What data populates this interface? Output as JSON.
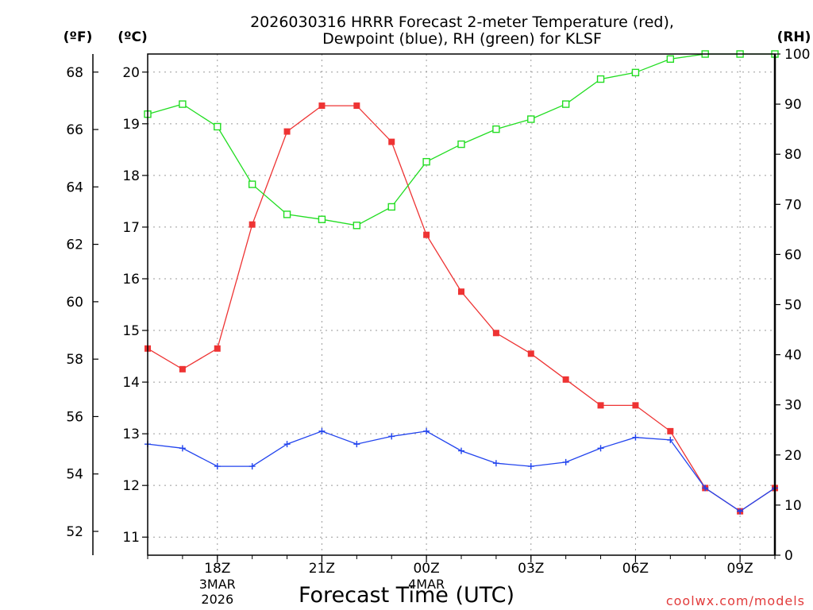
{
  "chart_data": {
    "type": "line",
    "title": [
      "2026030316 HRRR Forecast 2-meter Temperature (red),",
      "Dewpoint (blue), RH (green) for KLSF"
    ],
    "xlabel": "Forecast Time (UTC)",
    "credit": "coolwx.com/models",
    "units": {
      "fahrenheit": "(ºF)",
      "celsius": "(ºC)",
      "rh": "(RH)"
    },
    "x": [
      16,
      17,
      18,
      19,
      20,
      21,
      22,
      23,
      24,
      25,
      26,
      27,
      28,
      29,
      30,
      31,
      32,
      33,
      34
    ],
    "xlim": [
      16,
      34
    ],
    "x_ticks": [
      {
        "x": 18,
        "label": "18Z"
      },
      {
        "x": 21,
        "label": "21Z"
      },
      {
        "x": 24,
        "label": "00Z"
      },
      {
        "x": 27,
        "label": "03Z"
      },
      {
        "x": 30,
        "label": "06Z"
      },
      {
        "x": 33,
        "label": "09Z"
      }
    ],
    "date_labels": [
      {
        "x": 18,
        "lines": [
          "3MAR",
          "2026"
        ]
      },
      {
        "x": 24,
        "lines": [
          "4MAR"
        ]
      }
    ],
    "axes": {
      "celsius": {
        "range": [
          10.65,
          20.35
        ],
        "ticks": [
          11,
          12,
          13,
          14,
          15,
          16,
          17,
          18,
          19,
          20
        ]
      },
      "fahrenheit": {
        "ticks": [
          52,
          54,
          56,
          58,
          60,
          62,
          64,
          66,
          68
        ]
      },
      "rh": {
        "range": [
          0,
          100
        ],
        "ticks": [
          0,
          10,
          20,
          30,
          40,
          50,
          60,
          70,
          80,
          90,
          100
        ]
      }
    },
    "series": [
      {
        "name": "Temperature",
        "axis": "celsius",
        "color": "#ee3333",
        "marker": "filled-square",
        "values": [
          14.65,
          14.25,
          14.65,
          17.05,
          18.85,
          19.35,
          19.35,
          18.65,
          16.85,
          15.75,
          14.95,
          14.55,
          14.05,
          13.55,
          13.55,
          13.05,
          11.95,
          11.5,
          11.95
        ]
      },
      {
        "name": "Dewpoint",
        "axis": "celsius",
        "color": "#2244ee",
        "marker": "plus",
        "values": [
          12.8,
          12.72,
          12.37,
          12.37,
          12.8,
          13.05,
          12.8,
          12.95,
          13.05,
          12.67,
          12.43,
          12.37,
          12.45,
          12.72,
          12.93,
          12.88,
          11.95,
          11.5,
          11.95
        ]
      },
      {
        "name": "RH",
        "axis": "rh",
        "color": "#22dd22",
        "marker": "open-square",
        "values": [
          88,
          90,
          85.5,
          74,
          68,
          67,
          65.8,
          69.5,
          78.5,
          82,
          85,
          87,
          90,
          95,
          96.3,
          99,
          100,
          100,
          100
        ]
      }
    ]
  }
}
